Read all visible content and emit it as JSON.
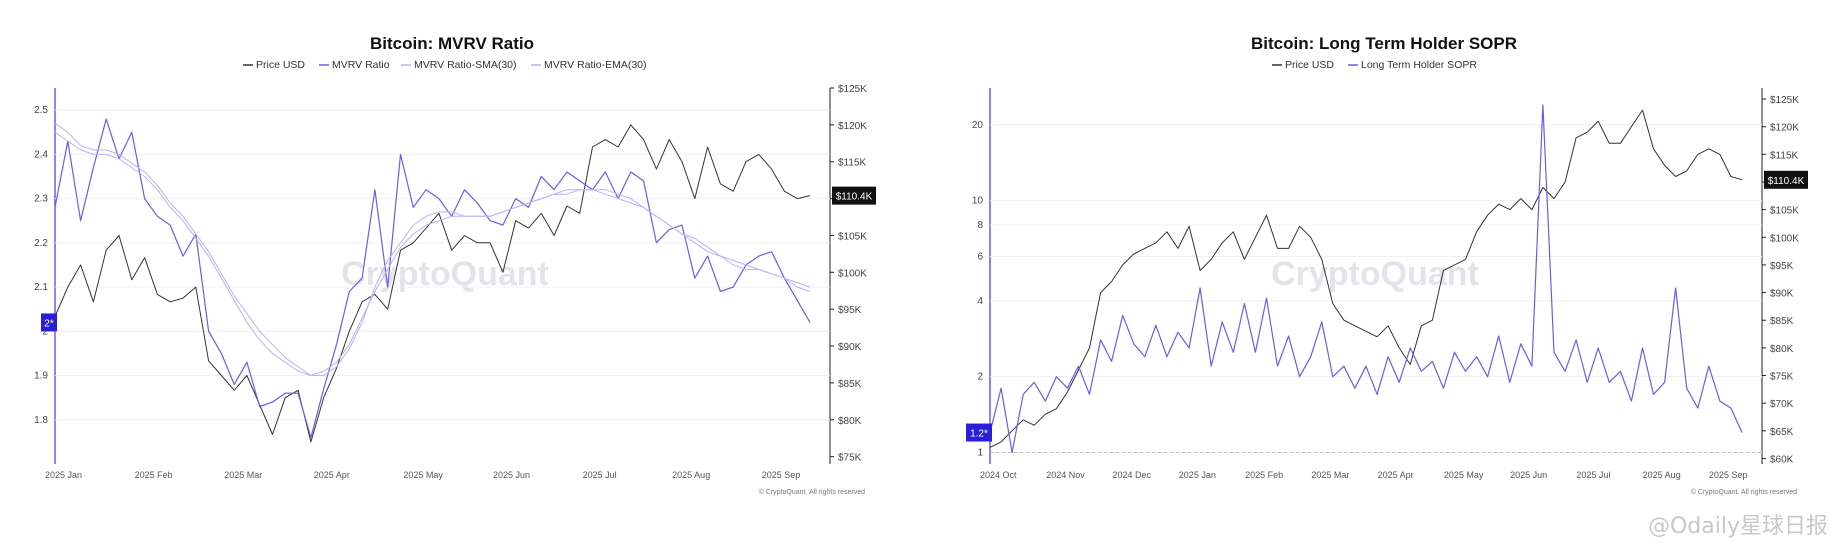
{
  "colors": {
    "price": "#333333",
    "series": "#6a5cf0",
    "ma": "#b9b2f5",
    "badge_bg": "#2a1fd6",
    "price_badge_bg": "#111111"
  },
  "watermark_text": "CryptoQuant",
  "footer_watermark": "@Odaily星球日报",
  "chart_data": [
    {
      "type": "line",
      "title": "Bitcoin: MVRV Ratio",
      "legend": [
        "Price USD",
        "MVRV Ratio",
        "MVRV Ratio-SMA(30)",
        "MVRV Ratio-EMA(30)"
      ],
      "x_ticks": [
        "2025 Jan",
        "2025 Feb",
        "2025 Mar",
        "2025 Apr",
        "2025 May",
        "2025 Jun",
        "2025 Jul",
        "2025 Aug",
        "2025 Sep"
      ],
      "y_left_ticks": [
        "2.5",
        "2.4",
        "2.3",
        "2.2",
        "2.1",
        "2",
        "1.9",
        "1.8"
      ],
      "y_left_range": [
        1.7,
        2.55
      ],
      "y_right_ticks": [
        "$125K",
        "$120K",
        "$115K",
        "$110K",
        "$105K",
        "$100K",
        "$95K",
        "$90K",
        "$85K",
        "$80K",
        "$75K"
      ],
      "y_right_range": [
        74000,
        125000
      ],
      "left_badge": "2*",
      "right_badge": "$110.4K",
      "copyright": "© CryptoQuant. All rights reserved",
      "series": [
        {
          "name": "Price USD",
          "axis": "right",
          "values": [
            94000,
            98000,
            101000,
            96000,
            103000,
            105000,
            99000,
            102000,
            97000,
            96000,
            96500,
            98000,
            88000,
            86000,
            84000,
            86000,
            82000,
            78000,
            83000,
            84000,
            77000,
            83000,
            87000,
            92000,
            96000,
            97000,
            95000,
            103000,
            104000,
            106000,
            108000,
            103000,
            105000,
            104000,
            104000,
            100000,
            107000,
            106000,
            108000,
            105000,
            109000,
            108000,
            117000,
            118000,
            117000,
            120000,
            118000,
            114000,
            118000,
            115000,
            110000,
            117000,
            112000,
            111000,
            115000,
            116000,
            114000,
            111000,
            110000,
            110400
          ]
        },
        {
          "name": "MVRV Ratio",
          "axis": "left",
          "values": [
            2.28,
            2.43,
            2.25,
            2.37,
            2.48,
            2.39,
            2.45,
            2.3,
            2.26,
            2.24,
            2.17,
            2.22,
            2.0,
            1.95,
            1.88,
            1.93,
            1.83,
            1.84,
            1.86,
            1.86,
            1.76,
            1.87,
            1.97,
            2.09,
            2.12,
            2.32,
            2.1,
            2.4,
            2.28,
            2.32,
            2.3,
            2.26,
            2.32,
            2.29,
            2.25,
            2.24,
            2.3,
            2.28,
            2.35,
            2.32,
            2.36,
            2.34,
            2.32,
            2.36,
            2.3,
            2.36,
            2.34,
            2.2,
            2.23,
            2.24,
            2.12,
            2.17,
            2.09,
            2.1,
            2.15,
            2.17,
            2.18,
            2.12,
            2.07,
            2.02
          ]
        },
        {
          "name": "MVRV Ratio-SMA(30)",
          "axis": "left",
          "values": [
            2.45,
            2.43,
            2.41,
            2.4,
            2.4,
            2.39,
            2.37,
            2.35,
            2.32,
            2.28,
            2.25,
            2.21,
            2.17,
            2.12,
            2.07,
            2.02,
            1.98,
            1.95,
            1.93,
            1.91,
            1.9,
            1.9,
            1.92,
            1.96,
            2.02,
            2.1,
            2.16,
            2.2,
            2.24,
            2.26,
            2.27,
            2.27,
            2.26,
            2.26,
            2.26,
            2.27,
            2.28,
            2.29,
            2.3,
            2.31,
            2.31,
            2.32,
            2.32,
            2.31,
            2.3,
            2.29,
            2.28,
            2.26,
            2.24,
            2.22,
            2.2,
            2.18,
            2.17,
            2.15,
            2.14,
            2.14,
            2.13,
            2.12,
            2.1,
            2.09
          ]
        },
        {
          "name": "MVRV Ratio-EMA(30)",
          "axis": "left",
          "values": [
            2.47,
            2.45,
            2.42,
            2.41,
            2.41,
            2.4,
            2.38,
            2.36,
            2.33,
            2.29,
            2.26,
            2.22,
            2.18,
            2.13,
            2.08,
            2.04,
            2.0,
            1.97,
            1.94,
            1.92,
            1.9,
            1.91,
            1.93,
            1.97,
            2.03,
            2.09,
            2.14,
            2.19,
            2.22,
            2.24,
            2.25,
            2.26,
            2.26,
            2.26,
            2.26,
            2.27,
            2.28,
            2.29,
            2.3,
            2.31,
            2.32,
            2.32,
            2.32,
            2.32,
            2.31,
            2.3,
            2.28,
            2.26,
            2.24,
            2.22,
            2.21,
            2.19,
            2.17,
            2.16,
            2.15,
            2.14,
            2.13,
            2.12,
            2.11,
            2.1
          ]
        }
      ]
    },
    {
      "type": "line",
      "title": "Bitcoin: Long Term Holder SOPR",
      "legend": [
        "Price USD",
        "Long Term Holder SOPR"
      ],
      "x_ticks": [
        "2024 Oct",
        "2024 Nov",
        "2024 Dec",
        "2025 Jan",
        "2025 Feb",
        "2025 Mar",
        "2025 Apr",
        "2025 May",
        "2025 Jun",
        "2025 Jul",
        "2025 Aug",
        "2025 Sep"
      ],
      "y_left_ticks": [
        "20",
        "10",
        "8",
        "6",
        "4",
        "2",
        "1"
      ],
      "y_left_scale": "log",
      "y_left_range": [
        0.9,
        28
      ],
      "y_right_ticks": [
        "$125K",
        "$120K",
        "$115K",
        "$110K",
        "$105K",
        "$100K",
        "$95K",
        "$90K",
        "$85K",
        "$80K",
        "$75K",
        "$70K",
        "$65K",
        "$60K"
      ],
      "y_right_range": [
        59000,
        127000
      ],
      "left_badge": "1.2*",
      "right_badge": "$110.4K",
      "copyright": "© CryptoQuant. All rights reserved",
      "series": [
        {
          "name": "Price USD",
          "axis": "right",
          "values": [
            62000,
            63000,
            65000,
            67000,
            66000,
            68000,
            69000,
            72000,
            76000,
            80000,
            90000,
            92000,
            95000,
            97000,
            98000,
            99000,
            101000,
            98000,
            102000,
            94000,
            96000,
            99000,
            101000,
            96000,
            100000,
            104000,
            98000,
            98000,
            102000,
            100000,
            96000,
            88000,
            85000,
            84000,
            83000,
            82000,
            84000,
            80000,
            77000,
            84000,
            85000,
            94000,
            95000,
            96000,
            101000,
            104000,
            106000,
            105000,
            107000,
            105000,
            109000,
            107000,
            110000,
            118000,
            119000,
            121000,
            117000,
            117000,
            120000,
            123000,
            116000,
            113000,
            111000,
            112000,
            115000,
            116000,
            115000,
            111000,
            110400
          ]
        },
        {
          "name": "Long Term Holder SOPR",
          "axis": "left",
          "values": [
            1.2,
            1.8,
            1.0,
            1.7,
            1.9,
            1.6,
            2.0,
            1.8,
            2.2,
            1.7,
            2.8,
            2.3,
            3.5,
            2.7,
            2.4,
            3.2,
            2.4,
            3.0,
            2.6,
            4.5,
            2.2,
            3.3,
            2.5,
            3.9,
            2.5,
            4.1,
            2.2,
            2.9,
            2.0,
            2.4,
            3.3,
            2.0,
            2.2,
            1.8,
            2.2,
            1.7,
            2.4,
            1.9,
            2.6,
            2.1,
            2.3,
            1.8,
            2.5,
            2.1,
            2.4,
            2.0,
            2.9,
            1.9,
            2.7,
            2.2,
            24.0,
            2.5,
            2.1,
            2.8,
            1.9,
            2.6,
            1.9,
            2.1,
            1.6,
            2.6,
            1.7,
            1.9,
            4.5,
            1.8,
            1.5,
            2.2,
            1.6,
            1.5,
            1.2
          ]
        }
      ]
    }
  ]
}
